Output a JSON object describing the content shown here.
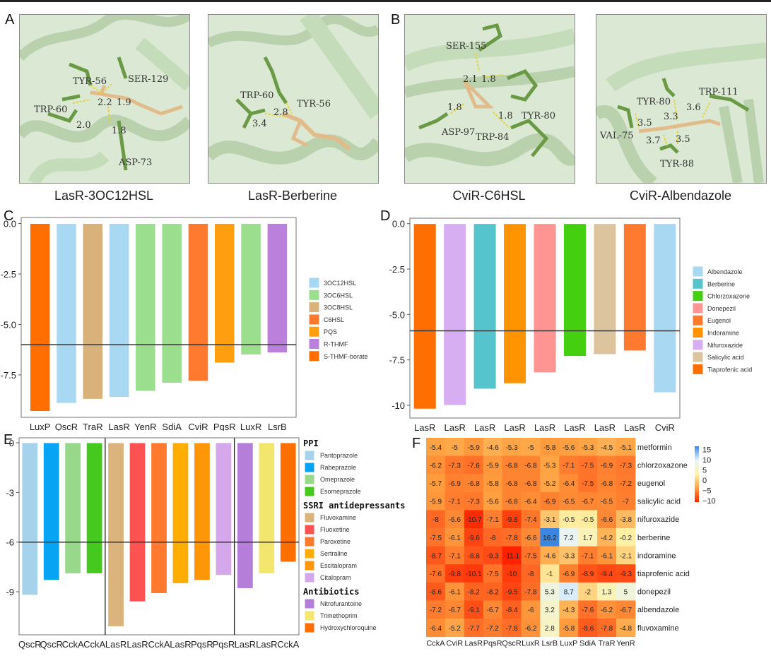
{
  "panels": {
    "A": {
      "label": "A",
      "structures": [
        {
          "caption": "LasR-3OC12HSL",
          "residues": [
            "TYR-56",
            "SER-129",
            "TRP-60",
            "ASP-73"
          ],
          "distances": [
            "2.2",
            "1.9",
            "2.0",
            "1.8"
          ]
        },
        {
          "caption": "LasR-Berberine",
          "residues": [
            "TRP-60",
            "TYR-56"
          ],
          "distances": [
            "2.8",
            "3.4"
          ]
        }
      ]
    },
    "B": {
      "label": "B",
      "structures": [
        {
          "caption": "CviR-C6HSL",
          "residues": [
            "SER-155",
            "TYR-80",
            "ASP-97",
            "TRP-84"
          ],
          "distances": [
            "2.1",
            "1.8",
            "1.8",
            "1.8"
          ]
        },
        {
          "caption": "CviR-Albendazole",
          "residues": [
            "TRP-111",
            "TYR-80",
            "VAL-75",
            "TYR-88"
          ],
          "distances": [
            "3.6",
            "3.3",
            "3.5",
            "3.7",
            "3.5"
          ]
        }
      ]
    },
    "C": {
      "label": "C"
    },
    "D": {
      "label": "D"
    },
    "E": {
      "label": "E"
    },
    "F": {
      "label": "F"
    }
  },
  "chart_data": [
    {
      "id": "C",
      "type": "bar",
      "title": "",
      "xlabel": "",
      "ylabel": "",
      "ylim": [
        -9.6,
        0.3
      ],
      "yticks": [
        0.0,
        -2.5,
        -5.0,
        -7.5
      ],
      "ytick_labels": [
        "0.0",
        "-2.5",
        "-5.0",
        "-7.5"
      ],
      "threshold": -6.0,
      "categories": [
        "LuxP",
        "QscR",
        "TraR",
        "LasR",
        "YenR",
        "SdiA",
        "CviR",
        "PqsR",
        "LuxR",
        "LsrB"
      ],
      "values": [
        -9.3,
        -8.9,
        -8.7,
        -8.6,
        -8.3,
        -7.9,
        -7.8,
        -6.9,
        -6.5,
        -6.4
      ],
      "groups": [
        "S-THMF-borate",
        "3OC12HSL",
        "3OC8HSL",
        "3OC12HSL",
        "3OC6HSL",
        "3OC6HSL",
        "C6HSL",
        "PQS",
        "3OC6HSL",
        "R-THMF"
      ],
      "legend": [
        {
          "name": "3OC12HSL",
          "color": "#a9d8f2"
        },
        {
          "name": "3OC6HSL",
          "color": "#9ade8e"
        },
        {
          "name": "3OC8HSL",
          "color": "#d8b27a"
        },
        {
          "name": "C6HSL",
          "color": "#ff7a2e"
        },
        {
          "name": "PQS",
          "color": "#ff9e0e"
        },
        {
          "name": "R-THMF",
          "color": "#bb80dc"
        },
        {
          "name": "S-THMF-borate",
          "color": "#ff6e00"
        }
      ],
      "legend_position": "right"
    },
    {
      "id": "D",
      "type": "bar",
      "title": "",
      "xlabel": "",
      "ylabel": "",
      "ylim": [
        -10.7,
        0.3
      ],
      "yticks": [
        0.0,
        -2.5,
        -5.0,
        -7.5,
        -10
      ],
      "ytick_labels": [
        "0.0",
        "-2.5",
        "-5.0",
        "-7.5",
        "-10"
      ],
      "threshold": -5.9,
      "categories": [
        "LasR",
        "LasR",
        "LasR",
        "LasR",
        "LasR",
        "LasR",
        "LasR",
        "LasR",
        "CviR"
      ],
      "values": [
        -10.2,
        -10.0,
        -9.1,
        -8.8,
        -8.2,
        -7.3,
        -7.2,
        -7.0,
        -9.3
      ],
      "groups": [
        "Tiaprofenic acid",
        "Nifuroxazide",
        "Berberine",
        "Indoramine",
        "Donepezil",
        "Chlorzoxazone",
        "Salicylic acid",
        "Eugenol",
        "Albendazole"
      ],
      "legend": [
        {
          "name": "Albendazole",
          "color": "#a9d8f2"
        },
        {
          "name": "Berberine",
          "color": "#55c4cc"
        },
        {
          "name": "Chlorzoxazone",
          "color": "#44d011"
        },
        {
          "name": "Donepezil",
          "color": "#ff9592"
        },
        {
          "name": "Eugenol",
          "color": "#ff7a2e"
        },
        {
          "name": "Indoramine",
          "color": "#ff9400"
        },
        {
          "name": "Nifuroxazide",
          "color": "#d8aef2"
        },
        {
          "name": "Salicylic acid",
          "color": "#dcc49e"
        },
        {
          "name": "Tiaprofenic acid",
          "color": "#ff6e00"
        }
      ],
      "legend_position": "right"
    },
    {
      "id": "E",
      "type": "bar",
      "title": "",
      "xlabel": "",
      "ylabel": "",
      "ylim": [
        -11.6,
        0.3
      ],
      "yticks": [
        0,
        -3,
        -6,
        -9
      ],
      "ytick_labels": [
        "0",
        "-3",
        "-6",
        "-9"
      ],
      "threshold": -6.0,
      "categories": [
        "QscR",
        "QscR",
        "CckA",
        "CckA",
        "LasR",
        "LasR",
        "CckA",
        "LasR",
        "PqsR",
        "PqsR",
        "LasR",
        "LasR",
        "CckA"
      ],
      "values": [
        -9.2,
        -8.3,
        -7.9,
        -7.9,
        -11.1,
        -9.6,
        -9.1,
        -8.5,
        -8.3,
        -8.0,
        -8.8,
        -7.9,
        -7.2
      ],
      "groups": [
        "Pantoprazole",
        "Rabeprazole",
        "Omeprazole",
        "Esomeprazole",
        "Fluvoxamine",
        "Fluoxetine",
        "Paroxetine",
        "Sertraline",
        "Escitalopram",
        "Citalopram",
        "Nitrofurantoine",
        "Trimethoprim",
        "Hydroxychloroquine"
      ],
      "group_dividers_after": [
        3,
        9
      ],
      "legend_sections": [
        {
          "title": "PPI",
          "items": [
            {
              "name": "Pantoprazole",
              "color": "#a6d2eb"
            },
            {
              "name": "Rabeprazole",
              "color": "#07a4f4"
            },
            {
              "name": "Omeprazole",
              "color": "#98d88a"
            },
            {
              "name": "Esomeprazole",
              "color": "#45c91e"
            }
          ]
        },
        {
          "title": "SSRI antidepressants",
          "items": [
            {
              "name": "Fluvoxamine",
              "color": "#dab37d"
            },
            {
              "name": "Fluoxetine",
              "color": "#ff5252"
            },
            {
              "name": "Paroxetine",
              "color": "#ff7a2e"
            },
            {
              "name": "Sertraline",
              "color": "#ffad00"
            },
            {
              "name": "Escitalopram",
              "color": "#ff9608"
            },
            {
              "name": "Citalopram",
              "color": "#d4a8ea"
            }
          ]
        },
        {
          "title": "Antibiotics",
          "items": [
            {
              "name": "Nitrofurantoine",
              "color": "#b57fd9"
            },
            {
              "name": "Trimethoprim",
              "color": "#f2e66e"
            },
            {
              "name": "Hydroxychloroquine",
              "color": "#ff6e00"
            }
          ]
        }
      ],
      "legend_position": "right"
    },
    {
      "id": "F",
      "type": "heatmap",
      "title": "",
      "columns": [
        "CckA",
        "CviR",
        "LasR",
        "PqsR",
        "QscR",
        "LuxR",
        "LsrB",
        "LuxP",
        "SdiA",
        "TraR",
        "YenR"
      ],
      "rows": [
        "metformin",
        "chlorzoxazone",
        "eugenol",
        "salicylic acid",
        "nifuroxazide",
        "berberine",
        "indoramine",
        "tiaprofenic acid",
        "donepezil",
        "albendazole",
        "fluvoxamine"
      ],
      "values": [
        [
          -5.4,
          -5.0,
          -5.9,
          -4.6,
          -5.3,
          -5.0,
          -5.8,
          -5.6,
          -5.3,
          -4.5,
          -5.1
        ],
        [
          -6.2,
          -7.3,
          -7.6,
          -5.9,
          -6.8,
          -6.8,
          -5.3,
          -7.1,
          -7.5,
          -6.9,
          -7.3
        ],
        [
          -5.7,
          -6.9,
          -6.8,
          -5.8,
          -6.8,
          -6.8,
          -5.2,
          -6.4,
          -7.5,
          -6.8,
          -7.2
        ],
        [
          -5.9,
          -7.1,
          -7.3,
          -5.6,
          -6.8,
          -6.4,
          -6.9,
          -6.5,
          -6.7,
          -6.5,
          -7.0
        ],
        [
          -8.0,
          -6.6,
          -10.7,
          -7.1,
          -9.8,
          -7.4,
          -3.1,
          -0.5,
          -0.5,
          -6.6,
          -3.8
        ],
        [
          -7.5,
          -6.1,
          -9.6,
          -8.0,
          -7.8,
          -6.6,
          16.2,
          7.2,
          1.7,
          -4.2,
          -0.2
        ],
        [
          -8.7,
          -7.1,
          -8.8,
          -9.3,
          -11.1,
          -7.5,
          -4.6,
          -3.3,
          -7.1,
          -6.1,
          -2.1
        ],
        [
          -7.6,
          -9.8,
          -10.1,
          -7.5,
          -10.0,
          -8.0,
          -1.0,
          -6.9,
          -8.9,
          -9.4,
          -9.3
        ],
        [
          -8.6,
          -6.1,
          -8.2,
          -8.2,
          -9.5,
          -7.8,
          5.3,
          8.7,
          -2.0,
          1.3,
          5.0
        ],
        [
          -7.2,
          -6.7,
          -9.1,
          -6.7,
          -8.4,
          -6.0,
          3.2,
          -4.3,
          -7.6,
          -6.2,
          -6.7
        ],
        [
          -6.4,
          -5.2,
          -7.7,
          -7.2,
          -7.8,
          -6.2,
          2.8,
          -5.8,
          -8.6,
          -7.8,
          -4.8
        ]
      ],
      "colorbar": {
        "ticks": [
          15,
          10,
          5,
          0,
          -5,
          -10
        ],
        "tick_labels": [
          "15",
          "10",
          "5",
          "0",
          "−5",
          "−10"
        ],
        "range": [
          -11.1,
          16.2
        ],
        "colors": [
          "#ff2200",
          "#ffa040",
          "#fff3a8",
          "#e6f4fb",
          "#3a86e0"
        ]
      },
      "legend_position": "right"
    }
  ]
}
